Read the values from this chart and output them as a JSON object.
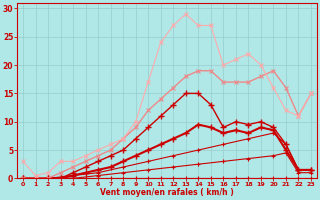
{
  "bg_color": "#b0e8e8",
  "grid_color": "#99cccc",
  "xlabel": "Vent moyen/en rafales ( km/h )",
  "xlim": [
    -0.5,
    23.5
  ],
  "ylim": [
    0,
    31
  ],
  "xticks": [
    0,
    1,
    2,
    3,
    4,
    5,
    6,
    7,
    8,
    9,
    10,
    11,
    12,
    13,
    14,
    15,
    16,
    17,
    18,
    19,
    20,
    21,
    22,
    23
  ],
  "yticks": [
    0,
    5,
    10,
    15,
    20,
    25,
    30
  ],
  "lines": [
    {
      "x": [
        0,
        1,
        2,
        3,
        4,
        5,
        6,
        7,
        8,
        9,
        10,
        11,
        12,
        13,
        14,
        15,
        16,
        17,
        18,
        19,
        20,
        21,
        22,
        23
      ],
      "y": [
        0,
        0,
        0,
        0,
        0,
        0,
        0,
        0,
        0,
        0,
        0,
        0,
        0,
        0,
        0,
        0,
        0,
        0,
        0,
        0,
        0,
        0,
        0,
        0
      ],
      "color": "#cc0000",
      "lw": 0.8,
      "marker": "+",
      "ms": 3,
      "mew": 0.8
    },
    {
      "x": [
        0,
        2,
        4,
        6,
        8,
        10,
        12,
        14,
        16,
        18,
        20,
        21,
        22,
        23
      ],
      "y": [
        0,
        0,
        0,
        0.5,
        1,
        1.5,
        2,
        2.5,
        3,
        3.5,
        4,
        4.5,
        1,
        1
      ],
      "color": "#cc0000",
      "lw": 0.8,
      "marker": "+",
      "ms": 3,
      "mew": 0.8
    },
    {
      "x": [
        0,
        2,
        4,
        6,
        8,
        10,
        12,
        14,
        16,
        18,
        20,
        21,
        22,
        23
      ],
      "y": [
        0,
        0,
        0.5,
        1,
        2,
        3,
        4,
        5,
        6,
        7,
        8,
        6,
        1.5,
        1.5
      ],
      "color": "#cc0000",
      "lw": 0.8,
      "marker": "+",
      "ms": 3,
      "mew": 0.8
    },
    {
      "x": [
        0,
        1,
        2,
        3,
        4,
        5,
        6,
        7,
        8,
        9,
        10,
        11,
        12,
        13,
        14,
        15,
        16,
        17,
        18,
        19,
        20,
        21,
        22,
        23
      ],
      "y": [
        0,
        0,
        0,
        0,
        0.5,
        1,
        1.5,
        2,
        3,
        4,
        5,
        6,
        7,
        8,
        9.5,
        9,
        8,
        8.5,
        8,
        9,
        8.5,
        5,
        1.5,
        1.5
      ],
      "color": "#cc0000",
      "lw": 1.5,
      "marker": "+",
      "ms": 4,
      "mew": 1.0
    },
    {
      "x": [
        0,
        1,
        2,
        3,
        4,
        5,
        6,
        7,
        8,
        9,
        10,
        11,
        12,
        13,
        14,
        15,
        16,
        17,
        18,
        19,
        20,
        21,
        22,
        23
      ],
      "y": [
        0,
        0,
        0,
        0,
        1,
        2,
        3,
        4,
        5,
        7,
        9,
        11,
        13,
        15,
        15,
        13,
        9,
        10,
        9.5,
        10,
        9,
        6,
        1.5,
        1.5
      ],
      "color": "#cc0000",
      "lw": 1.0,
      "marker": "+",
      "ms": 4,
      "mew": 1.0
    },
    {
      "x": [
        0,
        1,
        2,
        3,
        4,
        5,
        6,
        7,
        8,
        9,
        10,
        11,
        12,
        13,
        14,
        15,
        16,
        17,
        18,
        19,
        20,
        21,
        22,
        23
      ],
      "y": [
        0,
        0,
        0,
        1,
        2,
        3,
        4,
        5,
        7,
        9,
        12,
        14,
        16,
        18,
        19,
        19,
        17,
        17,
        17,
        18,
        19,
        16,
        11,
        15
      ],
      "color": "#ee8888",
      "lw": 1.0,
      "marker": "x",
      "ms": 3,
      "mew": 0.8
    },
    {
      "x": [
        0,
        1,
        2,
        3,
        4,
        5,
        6,
        7,
        8,
        9,
        10,
        11,
        12,
        13,
        14,
        15,
        16,
        17,
        18,
        19,
        20,
        21,
        22,
        23
      ],
      "y": [
        3,
        0.5,
        1,
        3,
        3,
        4,
        5,
        6,
        7,
        10,
        17,
        24,
        27,
        29,
        27,
        27,
        20,
        21,
        22,
        20,
        16,
        12,
        11,
        15
      ],
      "color": "#ffaaaa",
      "lw": 0.8,
      "marker": "x",
      "ms": 3,
      "mew": 0.8
    }
  ]
}
